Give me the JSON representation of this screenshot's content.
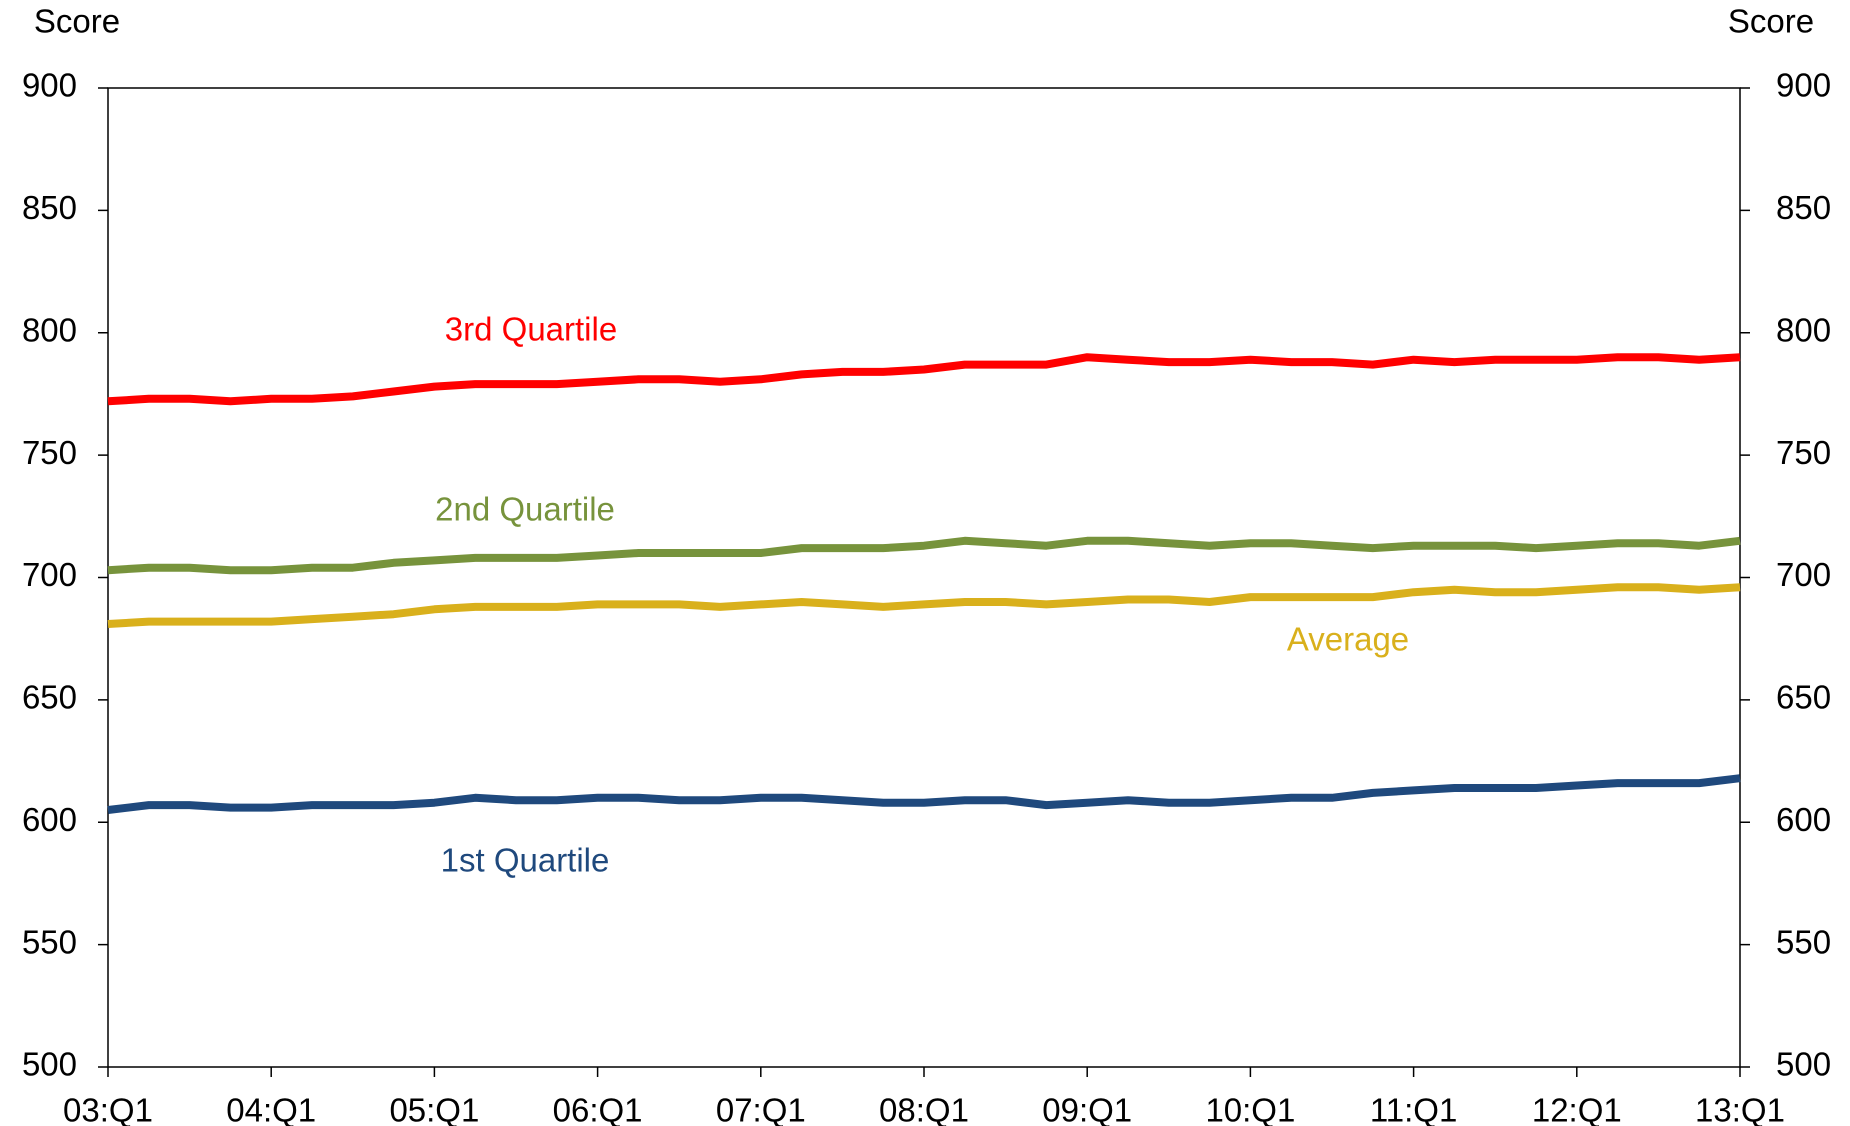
{
  "chart_data": {
    "type": "line",
    "y_label": "Score",
    "y2_label": "Score",
    "categories": [
      "03:Q1",
      null,
      null,
      null,
      "04:Q1",
      null,
      null,
      null,
      "05:Q1",
      null,
      null,
      null,
      "06:Q1",
      null,
      null,
      null,
      "07:Q1",
      null,
      null,
      null,
      "08:Q1",
      null,
      null,
      null,
      "09:Q1",
      null,
      null,
      null,
      "10:Q1",
      null,
      null,
      null,
      "11:Q1",
      null,
      null,
      null,
      "12:Q1",
      null,
      null,
      null,
      "13:Q1"
    ],
    "series": [
      {
        "name": "3rd Quartile",
        "color": "#ff0000",
        "values": [
          772,
          773,
          773,
          772,
          773,
          773,
          774,
          776,
          778,
          779,
          779,
          779,
          780,
          781,
          781,
          780,
          781,
          783,
          784,
          784,
          785,
          787,
          787,
          787,
          790,
          789,
          788,
          788,
          789,
          788,
          788,
          787,
          789,
          788,
          789,
          789,
          789,
          790,
          790,
          789,
          790
        ]
      },
      {
        "name": "2nd Quartile",
        "color": "#77933c",
        "values": [
          703,
          704,
          704,
          703,
          703,
          704,
          704,
          706,
          707,
          708,
          708,
          708,
          709,
          710,
          710,
          710,
          710,
          712,
          712,
          712,
          713,
          715,
          714,
          713,
          715,
          715,
          714,
          713,
          714,
          714,
          713,
          712,
          713,
          713,
          713,
          712,
          713,
          714,
          714,
          713,
          715
        ]
      },
      {
        "name": "Average",
        "color": "#d9b01c",
        "values": [
          681,
          682,
          682,
          682,
          682,
          683,
          684,
          685,
          687,
          688,
          688,
          688,
          689,
          689,
          689,
          688,
          689,
          690,
          689,
          688,
          689,
          690,
          690,
          689,
          690,
          691,
          691,
          690,
          692,
          692,
          692,
          692,
          694,
          695,
          694,
          694,
          695,
          696,
          696,
          695,
          696
        ]
      },
      {
        "name": "1st Quartile",
        "color": "#1f497d",
        "values": [
          605,
          607,
          607,
          606,
          606,
          607,
          607,
          607,
          608,
          610,
          609,
          609,
          610,
          610,
          609,
          609,
          610,
          610,
          609,
          608,
          608,
          609,
          609,
          607,
          608,
          609,
          608,
          608,
          609,
          610,
          610,
          612,
          613,
          614,
          614,
          614,
          615,
          616,
          616,
          616,
          618
        ]
      }
    ],
    "ylim": [
      500,
      900
    ],
    "yticks": [
      500,
      550,
      600,
      650,
      700,
      750,
      800,
      850,
      900
    ],
    "y2lim": [
      500,
      900
    ],
    "y2ticks": [
      500,
      550,
      600,
      650,
      700,
      750,
      800,
      850,
      900
    ]
  }
}
